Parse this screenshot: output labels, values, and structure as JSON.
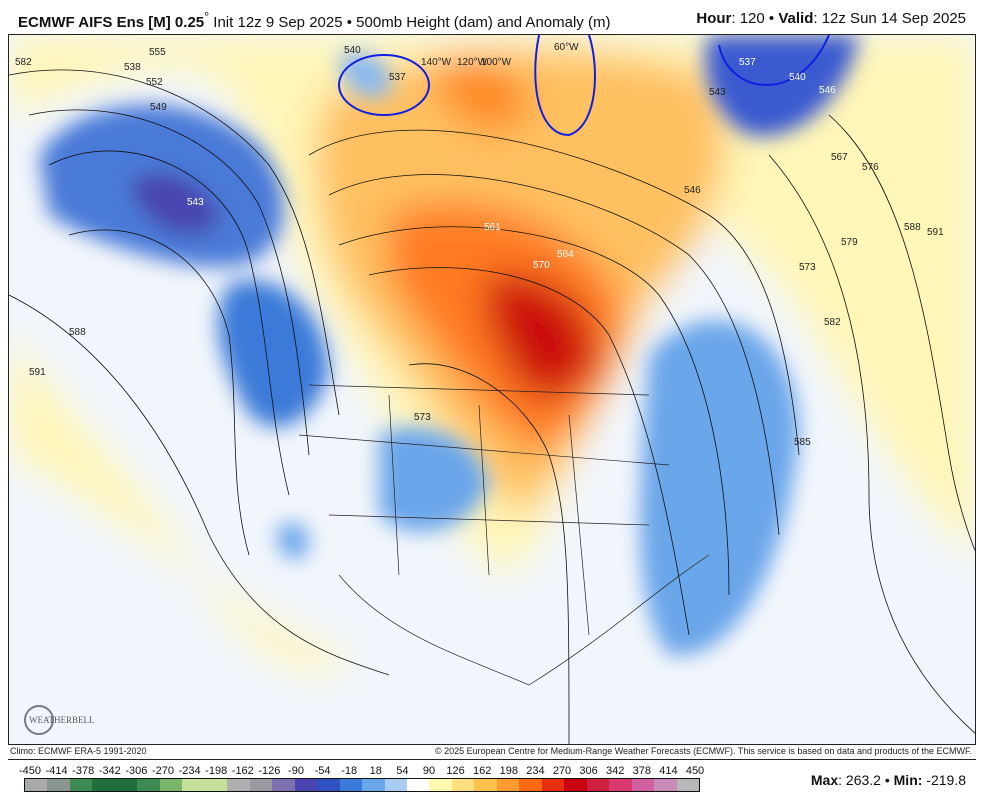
{
  "header": {
    "model": "ECMWF AIFS Ens [M] 0.25",
    "degree": "°",
    "init": "Init 12z 9 Sep 2025",
    "separator": "•",
    "product": "500mb Height (dam) and Anomaly (m)",
    "hour_label": "Hour",
    "hour": ": 120",
    "valid_label": "Valid",
    "valid": ": 12z Sun 14 Sep 2025"
  },
  "map": {
    "contour_labels": [
      "582",
      "538",
      "555",
      "552",
      "549",
      "543",
      "540",
      "537",
      "588",
      "591",
      "561",
      "564",
      "570",
      "573",
      "546",
      "567",
      "576",
      "579",
      "588",
      "591",
      "573",
      "582",
      "585",
      "537",
      "540",
      "546",
      "543"
    ],
    "longitude_labels": [
      "140°W",
      "120°W",
      "100°W",
      "60°W"
    ],
    "logo": "WEATHERBELL"
  },
  "footer": {
    "climo": "Climo: ECMWF ERA-5 1991-2020",
    "copyright": "© 2025 European Centre for Medium-Range Weather Forecasts (ECMWF). This service is based on data and products of the ECMWF."
  },
  "colorbar": {
    "ticks": [
      "-450",
      "-414",
      "-378",
      "-342",
      "-306",
      "-270",
      "-234",
      "-198",
      "-162",
      "-126",
      "-90",
      "-54",
      "-18",
      "18",
      "54",
      "90",
      "126",
      "162",
      "198",
      "234",
      "270",
      "306",
      "342",
      "378",
      "414",
      "450"
    ],
    "colors": [
      "#a8aaa8",
      "#8a9590",
      "#3d8a55",
      "#1f6e3c",
      "#1f6e3c",
      "#3d8a55",
      "#7ab56a",
      "#c5e09a",
      "#c5e09a",
      "#adb0ae",
      "#9a9aa2",
      "#7f70b0",
      "#4a44b0",
      "#2f52c0",
      "#3a7ad8",
      "#6aa6ea",
      "#a8ccf2",
      "#ffffff",
      "#fff8b0",
      "#ffe080",
      "#ffc050",
      "#ff9a30",
      "#ff6a10",
      "#e83010",
      "#c80010",
      "#d02040",
      "#d83a70",
      "#d060a0",
      "#c88cb8",
      "#b8b8b8"
    ]
  },
  "stats": {
    "max_label": "Max",
    "max": ": 263.2",
    "sep": " • ",
    "min_label": "Min:",
    "min": " -219.8"
  }
}
